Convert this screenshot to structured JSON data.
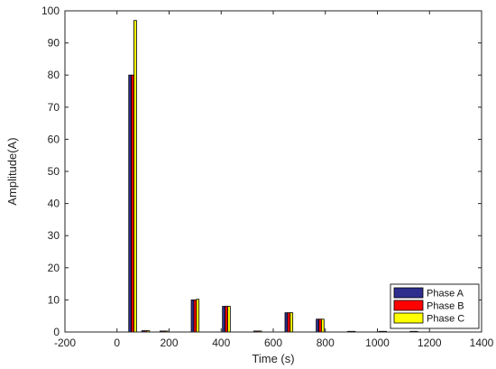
{
  "chart_data": {
    "type": "bar",
    "title": "",
    "xlabel": "Time (s)",
    "ylabel": "Amplitude(A)",
    "xlim": [
      -200,
      1400
    ],
    "ylim": [
      0,
      100
    ],
    "xticks": [
      -200,
      0,
      200,
      400,
      600,
      800,
      1000,
      1200,
      1400
    ],
    "yticks": [
      0,
      10,
      20,
      30,
      40,
      50,
      60,
      70,
      80,
      90,
      100
    ],
    "x": [
      60,
      110,
      180,
      300,
      420,
      540,
      660,
      780,
      900,
      1020,
      1140
    ],
    "series": [
      {
        "name": "Phase A",
        "color": "#2e2e8f",
        "values": [
          80,
          0.4,
          0.3,
          10,
          8,
          0.3,
          6,
          4,
          0.2,
          0.2,
          0.2
        ]
      },
      {
        "name": "Phase B",
        "color": "#ff0000",
        "values": [
          80,
          0.4,
          0.3,
          10,
          8,
          0.3,
          6,
          4,
          0.2,
          0.2,
          0.2
        ]
      },
      {
        "name": "Phase C",
        "color": "#ffff00",
        "values": [
          97,
          0.4,
          0.3,
          10.2,
          8,
          0.3,
          6,
          4,
          0.2,
          0.2,
          0.2
        ]
      }
    ],
    "bar_width_units": 10,
    "grid": false,
    "legend_position": "bottom-right"
  }
}
